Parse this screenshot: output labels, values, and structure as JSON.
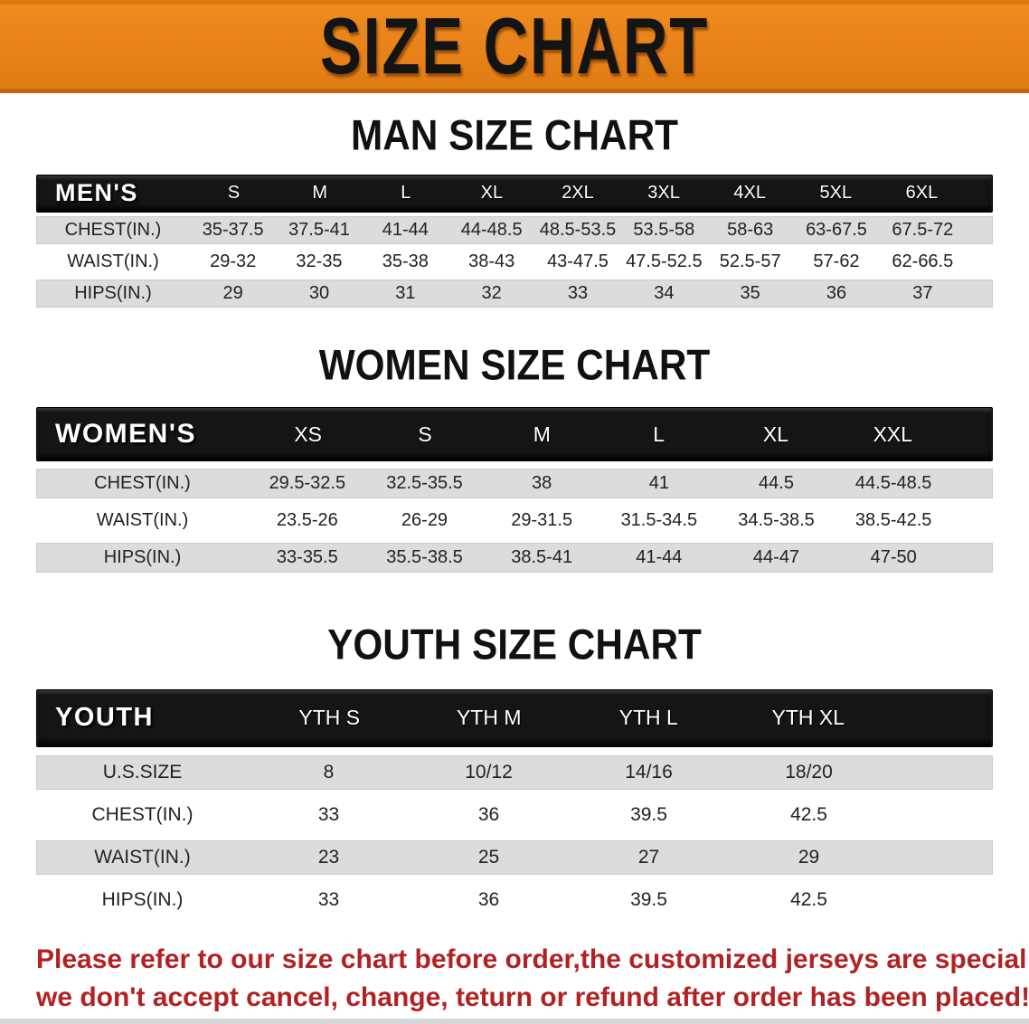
{
  "banner": {
    "title": "SIZE CHART"
  },
  "sections": [
    {
      "id": "men",
      "heading": "MAN SIZE CHART",
      "table": {
        "header_label": "MEN'S",
        "columns": [
          "S",
          "M",
          "L",
          "XL",
          "2XL",
          "3XL",
          "4XL",
          "5XL",
          "6XL"
        ],
        "rows": [
          {
            "label": "CHEST(IN.)",
            "values": [
              "35-37.5",
              "37.5-41",
              "41-44",
              "44-48.5",
              "48.5-53.5",
              "53.5-58",
              "58-63",
              "63-67.5",
              "67.5-72"
            ]
          },
          {
            "label": "WAIST(IN.)",
            "values": [
              "29-32",
              "32-35",
              "35-38",
              "38-43",
              "43-47.5",
              "47.5-52.5",
              "52.5-57",
              "57-62",
              "62-66.5"
            ]
          },
          {
            "label": "HIPS(IN.)",
            "values": [
              "29",
              "30",
              "31",
              "32",
              "33",
              "34",
              "35",
              "36",
              "37"
            ]
          }
        ]
      }
    },
    {
      "id": "women",
      "heading": "WOMEN SIZE CHART",
      "table": {
        "header_label": "WOMEN'S",
        "columns": [
          "XS",
          "S",
          "M",
          "L",
          "XL",
          "XXL"
        ],
        "rows": [
          {
            "label": "CHEST(IN.)",
            "values": [
              "29.5-32.5",
              "32.5-35.5",
              "38",
              "41",
              "44.5",
              "44.5-48.5"
            ]
          },
          {
            "label": "WAIST(IN.)",
            "values": [
              "23.5-26",
              "26-29",
              "29-31.5",
              "31.5-34.5",
              "34.5-38.5",
              "38.5-42.5"
            ]
          },
          {
            "label": "HIPS(IN.)",
            "values": [
              "33-35.5",
              "35.5-38.5",
              "38.5-41",
              "41-44",
              "44-47",
              "47-50"
            ]
          }
        ]
      }
    },
    {
      "id": "youth",
      "heading": "YOUTH SIZE CHART",
      "table": {
        "header_label": "YOUTH",
        "columns": [
          "YTH S",
          "YTH M",
          "YTH L",
          "YTH XL"
        ],
        "rows": [
          {
            "label": "U.S.SIZE",
            "values": [
              "8",
              "10/12",
              "14/16",
              "18/20"
            ]
          },
          {
            "label": "CHEST(IN.)",
            "values": [
              "33",
              "36",
              "39.5",
              "42.5"
            ]
          },
          {
            "label": "WAIST(IN.)",
            "values": [
              "23",
              "25",
              "27",
              "29"
            ]
          },
          {
            "label": "HIPS(IN.)",
            "values": [
              "33",
              "36",
              "39.5",
              "42.5"
            ]
          }
        ]
      }
    }
  ],
  "footnote": {
    "lines": [
      "Please refer to our size chart before order,the customized jerseys are special products,",
      "we don't accept cancel, change, teturn or refund after order has been placed!"
    ],
    "color": "#B22222"
  },
  "colors": {
    "banner_orange": "#E8821A",
    "band_black": "#151515",
    "stripe_gray": "#DCDCDC"
  }
}
